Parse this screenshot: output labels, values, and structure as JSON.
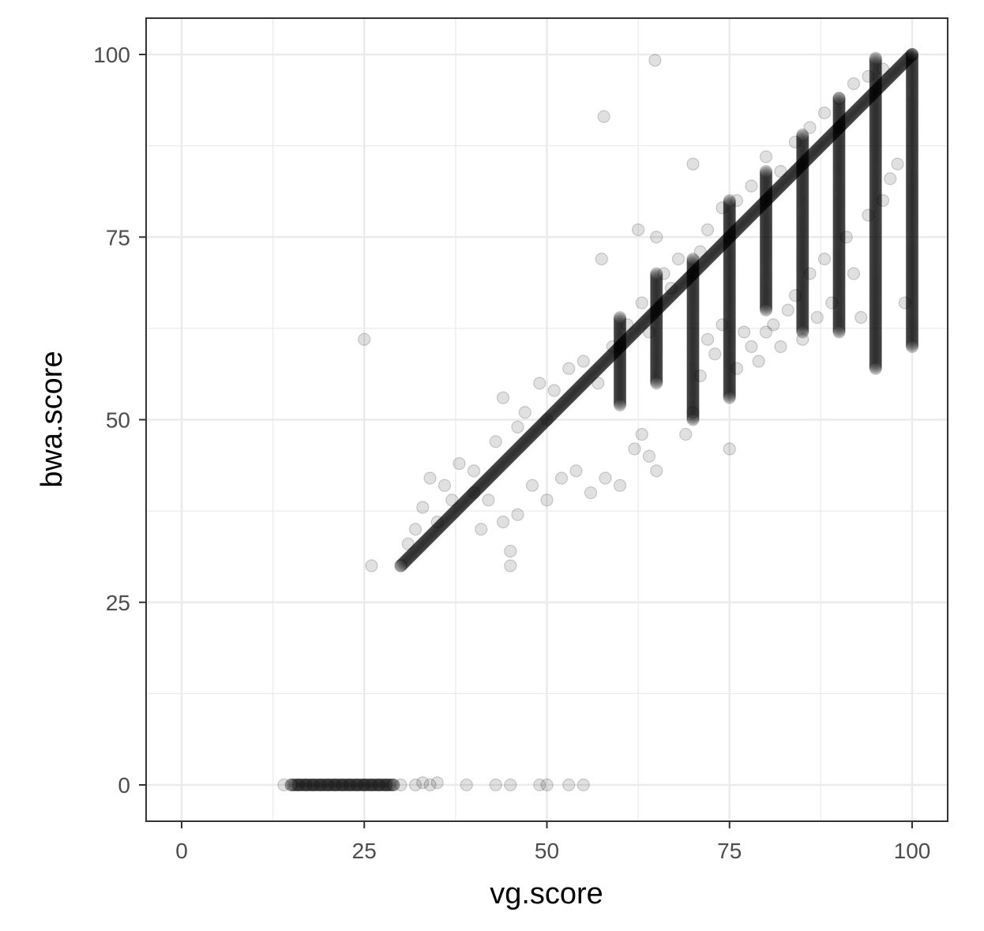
{
  "chart_data": {
    "type": "scatter",
    "title": "",
    "xlabel": "vg.score",
    "ylabel": "bwa.score",
    "xlim": [
      -5,
      105
    ],
    "ylim": [
      -5,
      105
    ],
    "x_ticks": [
      0,
      25,
      50,
      75,
      100
    ],
    "y_ticks": [
      0,
      25,
      50,
      75,
      100
    ],
    "x_tick_labels": [
      "0",
      "25",
      "50",
      "75",
      "100"
    ],
    "y_tick_labels": [
      "0",
      "25",
      "50",
      "75",
      "100"
    ],
    "grid": true,
    "point_color": "#000000",
    "point_alpha": 0.12,
    "series": [
      {
        "points": [
          [
            14,
            0
          ],
          [
            15,
            0
          ],
          [
            16,
            0
          ],
          [
            17,
            0
          ],
          [
            18,
            0
          ],
          [
            19,
            0
          ],
          [
            20,
            0
          ],
          [
            21,
            0
          ],
          [
            22,
            0
          ],
          [
            23,
            0
          ],
          [
            24,
            0
          ],
          [
            25,
            0
          ],
          [
            26,
            0
          ],
          [
            27,
            0
          ],
          [
            28,
            0
          ],
          [
            29,
            0
          ],
          [
            30,
            0
          ],
          [
            32,
            0
          ],
          [
            33,
            0.3
          ],
          [
            34,
            0
          ],
          [
            35,
            0.3
          ],
          [
            39,
            0
          ],
          [
            43,
            0
          ],
          [
            45,
            0
          ],
          [
            49,
            0
          ],
          [
            50,
            0
          ],
          [
            53,
            0
          ],
          [
            55,
            0
          ],
          [
            25,
            61
          ],
          [
            26,
            30
          ],
          [
            45,
            30
          ],
          [
            64.8,
            99.2
          ],
          [
            57.8,
            91.5
          ],
          [
            70,
            85
          ],
          [
            57.5,
            72
          ],
          [
            62.5,
            76
          ],
          [
            65,
            75
          ],
          [
            75,
            46
          ],
          [
            65,
            43
          ],
          [
            45,
            32
          ],
          [
            41,
            35
          ],
          [
            44,
            36
          ],
          [
            42,
            39
          ],
          [
            46,
            37
          ],
          [
            48,
            41
          ],
          [
            50,
            39
          ],
          [
            52,
            42
          ],
          [
            54,
            43
          ],
          [
            56,
            40
          ],
          [
            58,
            42
          ],
          [
            60,
            41
          ],
          [
            62,
            46
          ],
          [
            63,
            48
          ],
          [
            64,
            45
          ],
          [
            69,
            48
          ],
          [
            70,
            51
          ],
          [
            71,
            56
          ],
          [
            72,
            61
          ],
          [
            73,
            59
          ],
          [
            74,
            63
          ],
          [
            76,
            57
          ],
          [
            77,
            62
          ],
          [
            78,
            60
          ],
          [
            79,
            58
          ],
          [
            80,
            62
          ],
          [
            81,
            63
          ],
          [
            82,
            60
          ],
          [
            83,
            65
          ],
          [
            84,
            67
          ],
          [
            85,
            61
          ],
          [
            86,
            70
          ],
          [
            87,
            64
          ],
          [
            88,
            72
          ],
          [
            89,
            66
          ],
          [
            91,
            75
          ],
          [
            92,
            70
          ],
          [
            93,
            64
          ],
          [
            94,
            78
          ],
          [
            96,
            80
          ],
          [
            97,
            83
          ],
          [
            98,
            85
          ],
          [
            99,
            66
          ],
          [
            31,
            33
          ],
          [
            32,
            35
          ],
          [
            33,
            38
          ],
          [
            34,
            42
          ],
          [
            35,
            36
          ],
          [
            36,
            41
          ],
          [
            37,
            39
          ],
          [
            38,
            44
          ],
          [
            40,
            43
          ],
          [
            43,
            47
          ],
          [
            44,
            53
          ],
          [
            46,
            49
          ],
          [
            47,
            51
          ],
          [
            49,
            55
          ],
          [
            51,
            54
          ],
          [
            53,
            57
          ],
          [
            55,
            58
          ],
          [
            57,
            55
          ],
          [
            59,
            60
          ],
          [
            61,
            63
          ],
          [
            63,
            66
          ],
          [
            64,
            62
          ],
          [
            66,
            70
          ],
          [
            67,
            68
          ],
          [
            68,
            72
          ],
          [
            71,
            73
          ],
          [
            72,
            76
          ],
          [
            74,
            79
          ],
          [
            76,
            80
          ],
          [
            78,
            82
          ],
          [
            80,
            86
          ],
          [
            82,
            84
          ],
          [
            84,
            88
          ],
          [
            86,
            90
          ],
          [
            88,
            92
          ],
          [
            90,
            94
          ],
          [
            92,
            96
          ],
          [
            94,
            97
          ],
          [
            96,
            98
          ],
          [
            30,
            30
          ],
          [
            40,
            40
          ],
          [
            50,
            50
          ],
          [
            60,
            60
          ],
          [
            70,
            70
          ],
          [
            80,
            80
          ],
          [
            90,
            90
          ],
          [
            100,
            100
          ]
        ]
      }
    ],
    "dense_runs": [
      {
        "x_from": 15,
        "x_to": 29,
        "y_from": 0,
        "y_to": 0
      },
      {
        "x_from": 30,
        "x_to": 100,
        "y_from": 30,
        "y_to": 100
      },
      {
        "x_from": 85,
        "x_to": 85,
        "y_from": 62,
        "y_to": 89
      },
      {
        "x_from": 90,
        "x_to": 90,
        "y_from": 62,
        "y_to": 94
      },
      {
        "x_from": 95,
        "x_to": 95,
        "y_from": 57,
        "y_to": 99.5
      },
      {
        "x_from": 100,
        "x_to": 100,
        "y_from": 60,
        "y_to": 100
      },
      {
        "x_from": 80,
        "x_to": 80,
        "y_from": 65,
        "y_to": 84
      },
      {
        "x_from": 65,
        "x_to": 65,
        "y_from": 55,
        "y_to": 70
      },
      {
        "x_from": 60,
        "x_to": 60,
        "y_from": 52,
        "y_to": 64
      },
      {
        "x_from": 70,
        "x_to": 70,
        "y_from": 50,
        "y_to": 72
      },
      {
        "x_from": 75,
        "x_to": 75,
        "y_from": 53,
        "y_to": 80
      }
    ]
  }
}
